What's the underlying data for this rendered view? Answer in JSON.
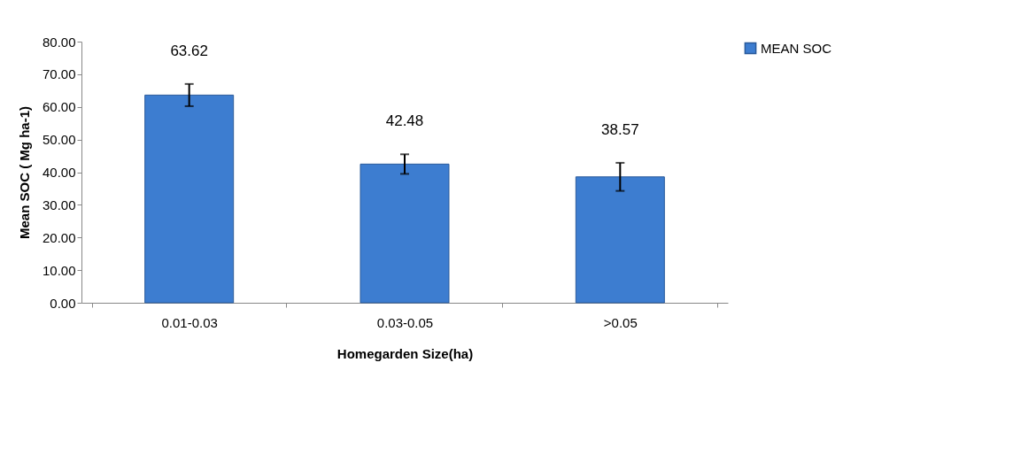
{
  "chart_data": {
    "type": "bar",
    "xlabel": "Homegarden Size(ha)",
    "ylabel": "Mean SOC ( Mg ha-1)",
    "categories": [
      "0.01-0.03",
      "0.03-0.05",
      ">0.05"
    ],
    "series": [
      {
        "name": "MEAN SOC",
        "color": "#3d7dd0",
        "values": [
          63.62,
          42.48,
          38.57
        ],
        "errors": [
          3.4,
          3.0,
          4.3
        ]
      }
    ],
    "ylim": [
      0,
      80
    ],
    "yticks": [
      {
        "value": 0,
        "label": "0.00"
      },
      {
        "value": 10,
        "label": "10.00"
      },
      {
        "value": 20,
        "label": "20.00"
      },
      {
        "value": 30,
        "label": "30.00"
      },
      {
        "value": 40,
        "label": "40.00"
      },
      {
        "value": 50,
        "label": "50.00"
      },
      {
        "value": 60,
        "label": "60.00"
      },
      {
        "value": 70,
        "label": "70.00"
      },
      {
        "value": 80,
        "label": "80.00"
      }
    ],
    "data_labels": true,
    "grid": false,
    "legend": "right"
  }
}
